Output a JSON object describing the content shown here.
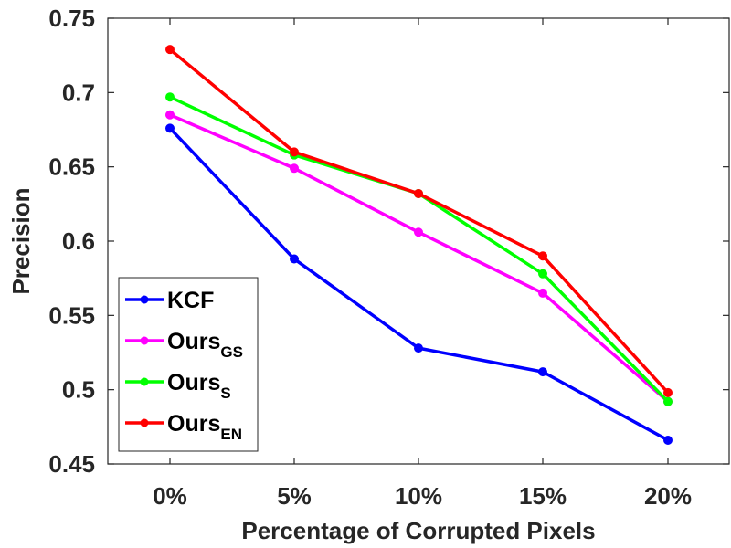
{
  "chart_data": {
    "type": "line",
    "title": "",
    "xlabel": "Percentage of Corrupted Pixels",
    "ylabel": "Precision",
    "categories": [
      "0%",
      "5%",
      "10%",
      "15%",
      "20%"
    ],
    "ylim": [
      0.45,
      0.75
    ],
    "yticks": [
      "0.45",
      "0.5",
      "0.55",
      "0.6",
      "0.65",
      "0.7",
      "0.75"
    ],
    "grid": false,
    "legend_position": "bottom-left",
    "series": [
      {
        "name": "KCF",
        "sub": "",
        "color": "#0000ff",
        "values": [
          0.676,
          0.588,
          0.528,
          0.512,
          0.466
        ]
      },
      {
        "name": "Ours",
        "sub": "GS",
        "color": "#ff00ff",
        "values": [
          0.685,
          0.649,
          0.606,
          0.565,
          0.492
        ]
      },
      {
        "name": "Ours",
        "sub": "S",
        "color": "#00ff00",
        "values": [
          0.697,
          0.658,
          0.632,
          0.578,
          0.492
        ]
      },
      {
        "name": "Ours",
        "sub": "EN",
        "color": "#ff0000",
        "values": [
          0.729,
          0.66,
          0.632,
          0.59,
          0.498
        ]
      }
    ]
  }
}
